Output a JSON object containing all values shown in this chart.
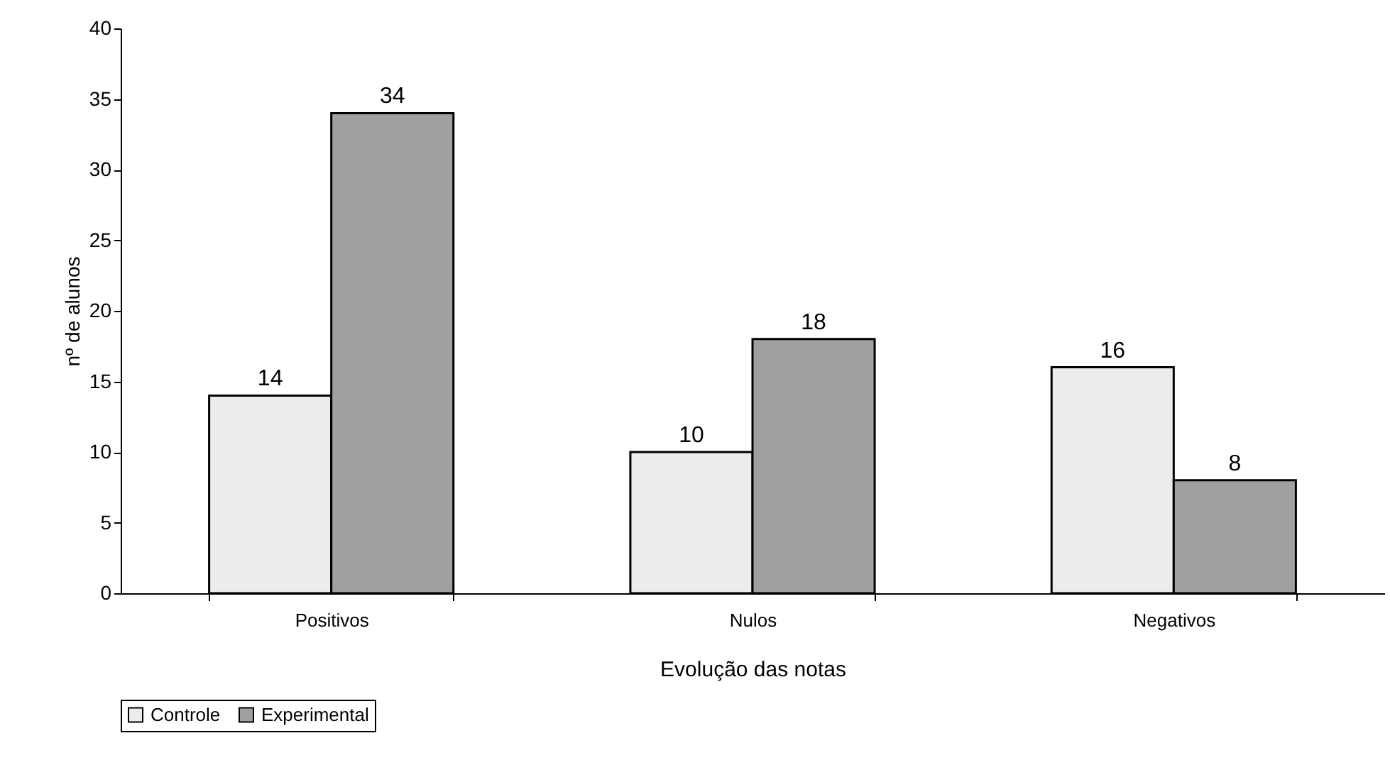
{
  "chart_data": {
    "type": "bar",
    "xlabel": "Evolução das notas",
    "ylabel": "nº de alunos",
    "categories": [
      "Positivos",
      "Nulos",
      "Negativos"
    ],
    "series": [
      {
        "name": "Controle",
        "color": "#ececec",
        "values": [
          14,
          10,
          16
        ]
      },
      {
        "name": "Experimental",
        "color": "#a0a0a0",
        "values": [
          34,
          18,
          8
        ]
      }
    ],
    "ylim": [
      0,
      40
    ],
    "yticks": [
      0,
      5,
      10,
      15,
      20,
      25,
      30,
      35,
      40
    ],
    "grid": false,
    "legend": "bottom",
    "data_labels": true
  }
}
